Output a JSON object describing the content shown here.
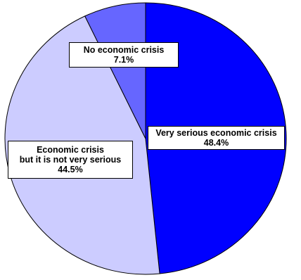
{
  "chart_data": {
    "type": "pie",
    "title": "",
    "start_angle_deg": 0,
    "direction": "clockwise",
    "slices": [
      {
        "label_lines": [
          "Very serious economic crisis"
        ],
        "value": 48.4,
        "value_label": "48.4%",
        "color": "#0000ff"
      },
      {
        "label_lines": [
          "Economic crisis",
          "but it is not very serious"
        ],
        "value": 44.5,
        "value_label": "44.5%",
        "color": "#ccccff"
      },
      {
        "label_lines": [
          "No economic crisis"
        ],
        "value": 7.1,
        "value_label": "7.1%",
        "color": "#6666ff"
      }
    ]
  }
}
